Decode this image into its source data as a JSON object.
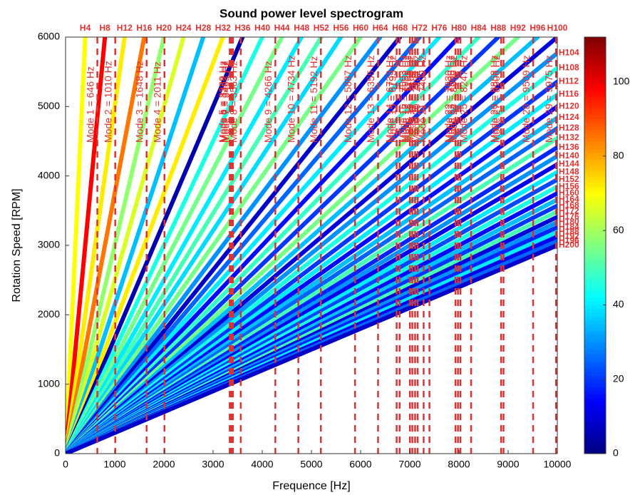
{
  "chart_data": {
    "type": "spectrogram",
    "title": "Sound power level spectrogram",
    "x_label": "Frequence [Hz]",
    "y_label": "Rotation Speed [RPM]",
    "xlim": [
      0,
      10000
    ],
    "xticks": [
      0,
      1000,
      2000,
      3000,
      4000,
      5000,
      6000,
      7000,
      8000,
      9000,
      10000
    ],
    "ylim": [
      0,
      6000
    ],
    "yticks": [
      0,
      1000,
      2000,
      3000,
      4000,
      5000,
      6000
    ],
    "clim": [
      0,
      112
    ],
    "cticks": [
      0,
      20,
      40,
      60,
      80,
      100
    ],
    "colormap": "jet",
    "harmonics": [
      {
        "label": "H4",
        "order": 4,
        "level": 70
      },
      {
        "label": "H8",
        "order": 8,
        "level": 98
      },
      {
        "label": "H12",
        "order": 12,
        "level": 72
      },
      {
        "label": "H16",
        "order": 16,
        "level": 85
      },
      {
        "label": "H20",
        "order": 20,
        "level": 58
      },
      {
        "label": "H24",
        "order": 24,
        "level": 66
      },
      {
        "label": "H28",
        "order": 28,
        "level": 35
      },
      {
        "label": "H32",
        "order": 32,
        "level": 72
      },
      {
        "label": "H36",
        "order": 36,
        "level": 5
      },
      {
        "label": "H40",
        "order": 40,
        "level": 45
      },
      {
        "label": "H44",
        "order": 44,
        "level": 55
      },
      {
        "label": "H48",
        "order": 48,
        "level": 40
      },
      {
        "label": "H52",
        "order": 52,
        "level": 50
      },
      {
        "label": "H56",
        "order": 56,
        "level": 38
      },
      {
        "label": "H60",
        "order": 60,
        "level": 55
      },
      {
        "label": "H64",
        "order": 64,
        "level": 30
      },
      {
        "label": "H68",
        "order": 68,
        "level": 8
      },
      {
        "label": "H72",
        "order": 72,
        "level": 25
      },
      {
        "label": "H76",
        "order": 76,
        "level": 40
      },
      {
        "label": "H80",
        "order": 80,
        "level": 15
      },
      {
        "label": "H84",
        "order": 84,
        "level": 48
      },
      {
        "label": "H88",
        "order": 88,
        "level": 20
      },
      {
        "label": "H92",
        "order": 92,
        "level": 55
      },
      {
        "label": "H96",
        "order": 96,
        "level": 35
      },
      {
        "label": "H100",
        "order": 100,
        "level": 10
      },
      {
        "label": "H104",
        "order": 104,
        "level": 30
      },
      {
        "label": "H108",
        "order": 108,
        "level": 45
      },
      {
        "label": "H112",
        "order": 112,
        "level": 20
      },
      {
        "label": "H116",
        "order": 116,
        "level": 40
      },
      {
        "label": "H120",
        "order": 120,
        "level": 15
      },
      {
        "label": "H124",
        "order": 124,
        "level": 35
      },
      {
        "label": "H128",
        "order": 128,
        "level": 25
      },
      {
        "label": "H132",
        "order": 132,
        "level": 50
      },
      {
        "label": "H136",
        "order": 136,
        "level": 18
      },
      {
        "label": "H140",
        "order": 140,
        "level": 30
      },
      {
        "label": "H144",
        "order": 144,
        "level": 12
      },
      {
        "label": "H148",
        "order": 148,
        "level": 40
      },
      {
        "label": "H152",
        "order": 152,
        "level": 22
      },
      {
        "label": "H156",
        "order": 156,
        "level": 45
      },
      {
        "label": "H160",
        "order": 160,
        "level": 15
      },
      {
        "label": "H164",
        "order": 164,
        "level": 35
      },
      {
        "label": "H168",
        "order": 168,
        "level": 20
      },
      {
        "label": "H172",
        "order": 172,
        "level": 50
      },
      {
        "label": "H176",
        "order": 176,
        "level": 10
      },
      {
        "label": "H180",
        "order": 180,
        "level": 30
      },
      {
        "label": "H184",
        "order": 184,
        "level": 18
      },
      {
        "label": "H188",
        "order": 188,
        "level": 40
      },
      {
        "label": "H192",
        "order": 192,
        "level": 12
      },
      {
        "label": "H196",
        "order": 196,
        "level": 25
      },
      {
        "label": "H200",
        "order": 200,
        "level": 8
      }
    ],
    "modes": [
      {
        "label": "Mode 1 = 646 Hz",
        "freq": 646
      },
      {
        "label": "Mode 2 = 1010 Hz",
        "freq": 1010
      },
      {
        "label": "Mode 3 = 1648 Hz",
        "freq": 1648
      },
      {
        "label": "Mode 4 = 2011 Hz",
        "freq": 2011
      },
      {
        "label": "Mode 5 = 3339 Hz",
        "freq": 3339
      },
      {
        "label": "Mode 6 = 3367 Hz",
        "freq": 3367
      },
      {
        "label": "Mode 7 = 3403 Hz",
        "freq": 3403
      },
      {
        "label": "Mode 8 = 3563 Hz",
        "freq": 3563
      },
      {
        "label": "Mode 9 = 4266 Hz",
        "freq": 4266
      },
      {
        "label": "Mode 10 = 4734 Hz",
        "freq": 4734
      },
      {
        "label": "Mode 11 = 5192 Hz",
        "freq": 5192
      },
      {
        "label": "Mode 12 = 5887 Hz",
        "freq": 5887
      },
      {
        "label": "Mode 13 = 6355 Hz",
        "freq": 6355
      },
      {
        "label": "Mode 14 = 6733 Hz",
        "freq": 6733
      },
      {
        "label": "Mode 15 = 6793 Hz",
        "freq": 6793
      },
      {
        "label": "Mode 16 = 7003 Hz",
        "freq": 7003
      },
      {
        "label": "Mode 17 = 7052 Hz",
        "freq": 7052
      },
      {
        "label": "Mode 18 = 7108 Hz",
        "freq": 7108
      },
      {
        "label": "Mode 19 = 7160 Hz",
        "freq": 7160
      },
      {
        "label": "Mode 20 = 7282 Hz",
        "freq": 7282
      },
      {
        "label": "Mode 21 = 7400 Hz",
        "freq": 7400
      },
      {
        "label": "Mode 22 = 7930 Hz",
        "freq": 7930
      },
      {
        "label": "Mode 23 = 7980 Hz",
        "freq": 7980
      },
      {
        "label": "Mode 24 = 8030 Hz",
        "freq": 8030
      },
      {
        "label": "Mode 25 = 8247 Hz",
        "freq": 8247
      },
      {
        "label": "Mode 26 = 8858 Hz",
        "freq": 8858
      },
      {
        "label": "Mode 27 = 8906 Hz",
        "freq": 8906
      },
      {
        "label": "Mode 28 = 9509 Hz",
        "freq": 9509
      },
      {
        "label": "Mode 29 = 9975 Hz",
        "freq": 9975
      }
    ]
  }
}
